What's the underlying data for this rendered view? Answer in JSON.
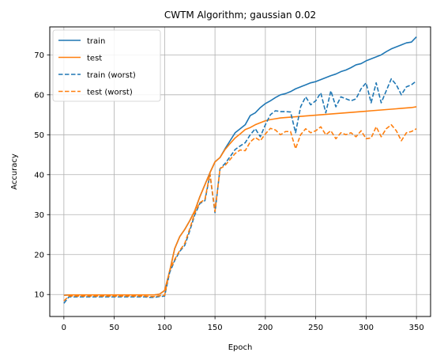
{
  "chart_data": {
    "type": "line",
    "title": "CWTM Algorithm; gaussian 0.02",
    "xlabel": "Epoch",
    "ylabel": "Accuracy",
    "xlim": [
      -14,
      364
    ],
    "ylim": [
      4.5,
      77
    ],
    "xticks": [
      0,
      50,
      100,
      150,
      200,
      250,
      300,
      350
    ],
    "yticks": [
      10,
      20,
      30,
      40,
      50,
      60,
      70
    ],
    "grid": true,
    "legend_position": "top-left",
    "x": [
      0,
      5,
      10,
      15,
      20,
      25,
      30,
      35,
      40,
      45,
      50,
      55,
      60,
      65,
      70,
      75,
      80,
      85,
      90,
      95,
      100,
      105,
      110,
      115,
      120,
      125,
      130,
      135,
      140,
      145,
      150,
      155,
      160,
      165,
      170,
      175,
      180,
      185,
      190,
      195,
      200,
      205,
      210,
      215,
      220,
      225,
      230,
      235,
      240,
      245,
      250,
      255,
      260,
      265,
      270,
      275,
      280,
      285,
      290,
      295,
      300,
      305,
      310,
      315,
      320,
      325,
      330,
      335,
      340,
      345,
      350
    ],
    "series": [
      {
        "name": "train",
        "color": "#1f77b4",
        "dash": "solid",
        "values": [
          9.8,
          9.9,
          9.9,
          9.9,
          9.9,
          9.9,
          9.9,
          9.9,
          9.9,
          9.9,
          9.9,
          9.9,
          9.9,
          9.9,
          9.9,
          9.9,
          9.9,
          9.9,
          9.9,
          10.1,
          11.0,
          15.8,
          21.5,
          24.5,
          26.3,
          28.5,
          31.0,
          34.5,
          37.5,
          40.5,
          43.2,
          44.3,
          46.5,
          48.5,
          50.5,
          51.5,
          52.5,
          54.8,
          55.5,
          56.8,
          57.8,
          58.5,
          59.3,
          60.0,
          60.3,
          60.8,
          61.5,
          62.0,
          62.5,
          63.0,
          63.3,
          63.8,
          64.3,
          64.8,
          65.2,
          65.8,
          66.2,
          66.8,
          67.5,
          67.8,
          68.5,
          69.0,
          69.5,
          70.0,
          70.8,
          71.5,
          72.0,
          72.5,
          73.0,
          73.2,
          74.5
        ]
      },
      {
        "name": "test",
        "color": "#ff7f0e",
        "dash": "solid",
        "values": [
          9.8,
          9.9,
          9.9,
          9.9,
          9.9,
          9.9,
          9.9,
          9.9,
          9.9,
          9.9,
          9.9,
          9.9,
          9.9,
          9.9,
          9.9,
          9.9,
          9.9,
          9.9,
          9.9,
          10.1,
          11.0,
          15.8,
          21.5,
          24.5,
          26.3,
          28.5,
          31.0,
          34.5,
          37.5,
          40.5,
          43.2,
          44.3,
          46.3,
          47.8,
          49.2,
          50.2,
          51.3,
          51.8,
          52.5,
          53.0,
          53.5,
          53.8,
          54.0,
          54.2,
          54.3,
          54.4,
          54.5,
          54.6,
          54.7,
          54.8,
          54.9,
          55.0,
          55.1,
          55.2,
          55.3,
          55.4,
          55.5,
          55.6,
          55.7,
          55.8,
          55.9,
          56.0,
          56.1,
          56.2,
          56.3,
          56.4,
          56.5,
          56.6,
          56.7,
          56.8,
          57.0
        ]
      },
      {
        "name": "train (worst)",
        "color": "#1f77b4",
        "dash": "dashed",
        "values": [
          7.8,
          9.4,
          9.4,
          9.4,
          9.4,
          9.4,
          9.4,
          9.4,
          9.4,
          9.4,
          9.4,
          9.4,
          9.4,
          9.4,
          9.4,
          9.4,
          9.4,
          9.3,
          9.3,
          9.5,
          9.6,
          15.5,
          18.5,
          20.8,
          22.3,
          26.0,
          30.0,
          32.8,
          33.5,
          40.0,
          30.5,
          41.5,
          42.8,
          44.5,
          46.3,
          47.2,
          48.0,
          50.0,
          51.5,
          49.5,
          52.5,
          55.0,
          56.0,
          55.8,
          55.8,
          55.7,
          50.5,
          57.0,
          59.5,
          57.5,
          58.5,
          60.5,
          55.5,
          61.0,
          57.0,
          59.5,
          59.0,
          58.5,
          59.0,
          61.5,
          63.0,
          58.0,
          63.0,
          58.0,
          61.0,
          64.0,
          62.5,
          60.0,
          62.0,
          62.5,
          63.5
        ]
      },
      {
        "name": "test (worst)",
        "color": "#ff7f0e",
        "dash": "dashed",
        "values": [
          8.4,
          9.6,
          9.6,
          9.6,
          9.6,
          9.6,
          9.6,
          9.6,
          9.6,
          9.6,
          9.6,
          9.6,
          9.6,
          9.6,
          9.6,
          9.6,
          9.6,
          9.5,
          9.5,
          9.7,
          9.8,
          16.0,
          18.8,
          21.0,
          22.8,
          26.5,
          30.5,
          33.0,
          33.8,
          40.3,
          30.8,
          41.5,
          42.3,
          43.8,
          45.3,
          46.2,
          46.0,
          48.2,
          49.3,
          48.5,
          50.2,
          51.6,
          51.2,
          50.0,
          50.8,
          50.8,
          46.5,
          50.0,
          51.5,
          50.5,
          51.0,
          52.0,
          50.0,
          51.0,
          49.0,
          50.5,
          50.0,
          50.5,
          49.5,
          51.0,
          49.0,
          49.2,
          52.0,
          49.5,
          51.5,
          52.5,
          51.0,
          48.5,
          50.5,
          50.8,
          51.5
        ]
      }
    ]
  }
}
